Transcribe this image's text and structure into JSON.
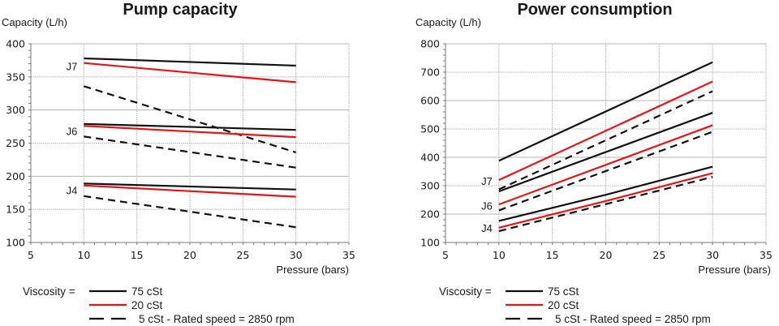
{
  "colors": {
    "75cSt": "#111111",
    "20cSt": "#e0161b",
    "5cSt": "#111111",
    "grid": "#b5b5b5",
    "axis": "#7a7a7a"
  },
  "chart_data": [
    {
      "type": "line",
      "title": "Pump capacity",
      "ylabel": "Capacity (L/h)",
      "xlabel": "Pressure (bars)",
      "xlim": [
        5,
        35
      ],
      "ylim": [
        100,
        400
      ],
      "xticks": [
        "5",
        "10",
        "15",
        "20",
        "25",
        "30",
        "35"
      ],
      "yticks": [
        "100",
        "150",
        "200",
        "250",
        "300",
        "350",
        "400"
      ],
      "grid": true,
      "group_labels": [
        {
          "text": "J7",
          "y": 365
        },
        {
          "text": "J6",
          "y": 267
        },
        {
          "text": "J4",
          "y": 178
        }
      ],
      "series": [
        {
          "name": "J7 75 cSt",
          "viscosity": "75 cSt",
          "x": [
            10,
            30
          ],
          "values": [
            378,
            367
          ]
        },
        {
          "name": "J7 20 cSt",
          "viscosity": "20 cSt",
          "x": [
            10,
            30
          ],
          "values": [
            371,
            342
          ]
        },
        {
          "name": "J7 5 cSt",
          "viscosity": "5 cSt",
          "x": [
            10,
            30
          ],
          "values": [
            336,
            236
          ]
        },
        {
          "name": "J6 75 cSt",
          "viscosity": "75 cSt",
          "x": [
            10,
            30
          ],
          "values": [
            279,
            270
          ]
        },
        {
          "name": "J6 20 cSt",
          "viscosity": "20 cSt",
          "x": [
            10,
            30
          ],
          "values": [
            276,
            259
          ]
        },
        {
          "name": "J6 5 cSt",
          "viscosity": "5 cSt",
          "x": [
            10,
            30
          ],
          "values": [
            260,
            213
          ]
        },
        {
          "name": "J4 75 cSt",
          "viscosity": "75 cSt",
          "x": [
            10,
            30
          ],
          "values": [
            189,
            180
          ]
        },
        {
          "name": "J4 20 cSt",
          "viscosity": "20 cSt",
          "x": [
            10,
            30
          ],
          "values": [
            186,
            169
          ]
        },
        {
          "name": "J4 5 cSt",
          "viscosity": "5 cSt",
          "x": [
            10,
            30
          ],
          "values": [
            170,
            123
          ]
        }
      ]
    },
    {
      "type": "line",
      "title": "Power consumption",
      "ylabel": "Capacity (L/h)",
      "xlabel": "Pressure (bars)",
      "xlim": [
        5,
        35
      ],
      "ylim": [
        100,
        800
      ],
      "xticks": [
        "5",
        "10",
        "15",
        "20",
        "25",
        "30",
        "35"
      ],
      "yticks": [
        "100",
        "200",
        "300",
        "400",
        "500",
        "600",
        "700",
        "800"
      ],
      "grid": true,
      "group_labels": [
        {
          "text": "J7",
          "y": 315
        },
        {
          "text": "J6",
          "y": 227
        },
        {
          "text": "J4",
          "y": 148
        }
      ],
      "series": [
        {
          "name": "J7 75 cSt",
          "viscosity": "75 cSt",
          "x": [
            10,
            30
          ],
          "values": [
            388,
            735
          ]
        },
        {
          "name": "J7 20 cSt",
          "viscosity": "20 cSt",
          "x": [
            10,
            30
          ],
          "values": [
            320,
            667
          ]
        },
        {
          "name": "J7 5 cSt",
          "viscosity": "5 cSt",
          "x": [
            10,
            30
          ],
          "values": [
            287,
            633
          ]
        },
        {
          "name": "J6 75 cSt",
          "viscosity": "75 cSt",
          "x": [
            10,
            30
          ],
          "values": [
            280,
            557
          ]
        },
        {
          "name": "J6 20 cSt",
          "viscosity": "20 cSt",
          "x": [
            10,
            30
          ],
          "values": [
            234,
            513
          ]
        },
        {
          "name": "J6 5 cSt",
          "viscosity": "5 cSt",
          "x": [
            10,
            30
          ],
          "values": [
            213,
            490
          ]
        },
        {
          "name": "J4 75 cSt",
          "viscosity": "75 cSt",
          "x": [
            10,
            20,
            30
          ],
          "values": [
            176,
            268,
            367
          ]
        },
        {
          "name": "J4 20 cSt",
          "viscosity": "20 cSt",
          "x": [
            10,
            20,
            30
          ],
          "values": [
            152,
            246,
            344
          ]
        },
        {
          "name": "J4 5 cSt",
          "viscosity": "5 cSt",
          "x": [
            10,
            20,
            30
          ],
          "values": [
            140,
            235,
            331
          ]
        }
      ]
    }
  ],
  "legend": {
    "prefix": "Viscosity =",
    "entries": [
      {
        "label": "75 cSt",
        "style": "solid",
        "color": "#111111"
      },
      {
        "label": "20 cSt",
        "style": "solid",
        "color": "#e0161b"
      },
      {
        "label": "5 cSt  -  Rated speed = 2850 rpm",
        "style": "dashed",
        "color": "#111111"
      }
    ]
  }
}
